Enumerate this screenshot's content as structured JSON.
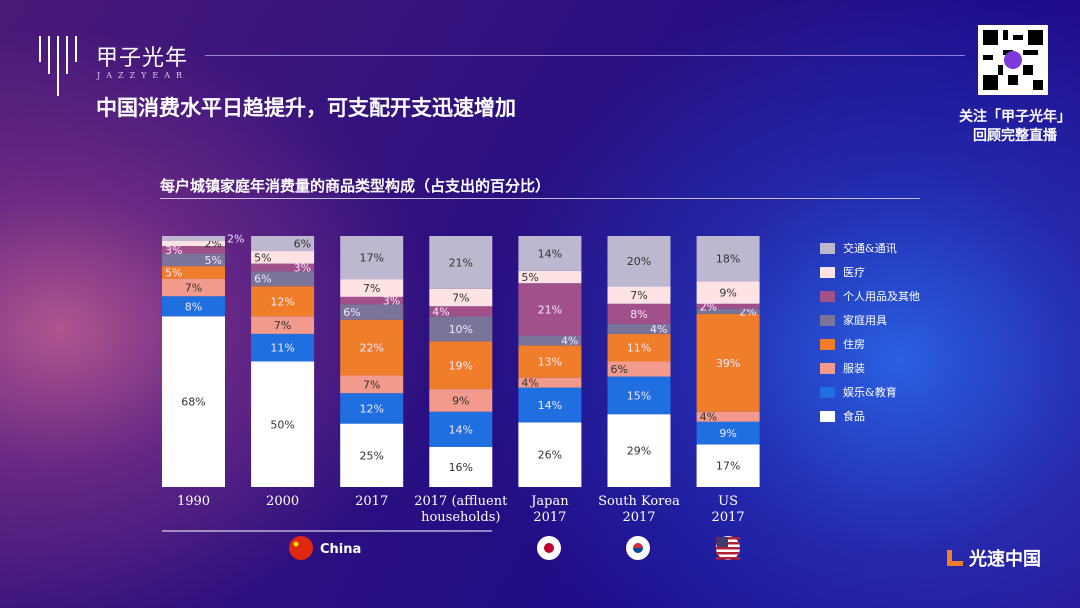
{
  "brand": {
    "name": "甲子光年",
    "name_en": "JAZZYEAR"
  },
  "title": "中国消费水平日趋提升，可支配开支迅速增加",
  "follow": {
    "line1": "关注「甲子光年」",
    "line2": "回顾完整直播"
  },
  "footer_logo": "光速中国",
  "colors": {
    "交通&通讯": "#bdb8cf",
    "医疗": "#fde3e3",
    "个人用品及其他": "#a2508a",
    "家庭用具": "#7a7598",
    "住房": "#ef7d2a",
    "服装": "#f29b8c",
    "娱乐&教育": "#1f6fe0",
    "食品": "#ffffff"
  },
  "chart_data": {
    "type": "bar",
    "stacked": true,
    "title": "每户城镇家庭年消费量的商品类型构成（占支出的百分比）",
    "unit": "%",
    "ylim": [
      0,
      100
    ],
    "categories": [
      [
        "1990"
      ],
      [
        "2000"
      ],
      [
        "2017"
      ],
      [
        "2017 (affluent",
        "households)"
      ],
      [
        "Japan",
        "2017"
      ],
      [
        "South Korea",
        "2017"
      ],
      [
        "US",
        "2017"
      ]
    ],
    "group_label": "China",
    "flags": [
      "china-flag",
      "japan-flag",
      "south-korea-flag",
      "us-flag"
    ],
    "legend_placement": "right",
    "series": [
      {
        "name": "食品",
        "values": [
          68,
          50,
          25,
          16,
          26,
          29,
          17
        ]
      },
      {
        "name": "娱乐&教育",
        "values": [
          8,
          11,
          12,
          14,
          14,
          15,
          9
        ]
      },
      {
        "name": "服装",
        "values": [
          7,
          7,
          7,
          9,
          4,
          6,
          4
        ]
      },
      {
        "name": "住房",
        "values": [
          5,
          12,
          22,
          19,
          13,
          11,
          39
        ]
      },
      {
        "name": "家庭用具",
        "values": [
          5,
          6,
          6,
          10,
          4,
          4,
          2
        ]
      },
      {
        "name": "个人用品及其他",
        "values": [
          3,
          3,
          3,
          4,
          21,
          8,
          2
        ]
      },
      {
        "name": "医疗",
        "values": [
          2,
          5,
          7,
          7,
          5,
          7,
          9
        ]
      },
      {
        "name": "交通&通讯",
        "values": [
          2,
          6,
          17,
          21,
          14,
          20,
          18
        ]
      }
    ]
  }
}
